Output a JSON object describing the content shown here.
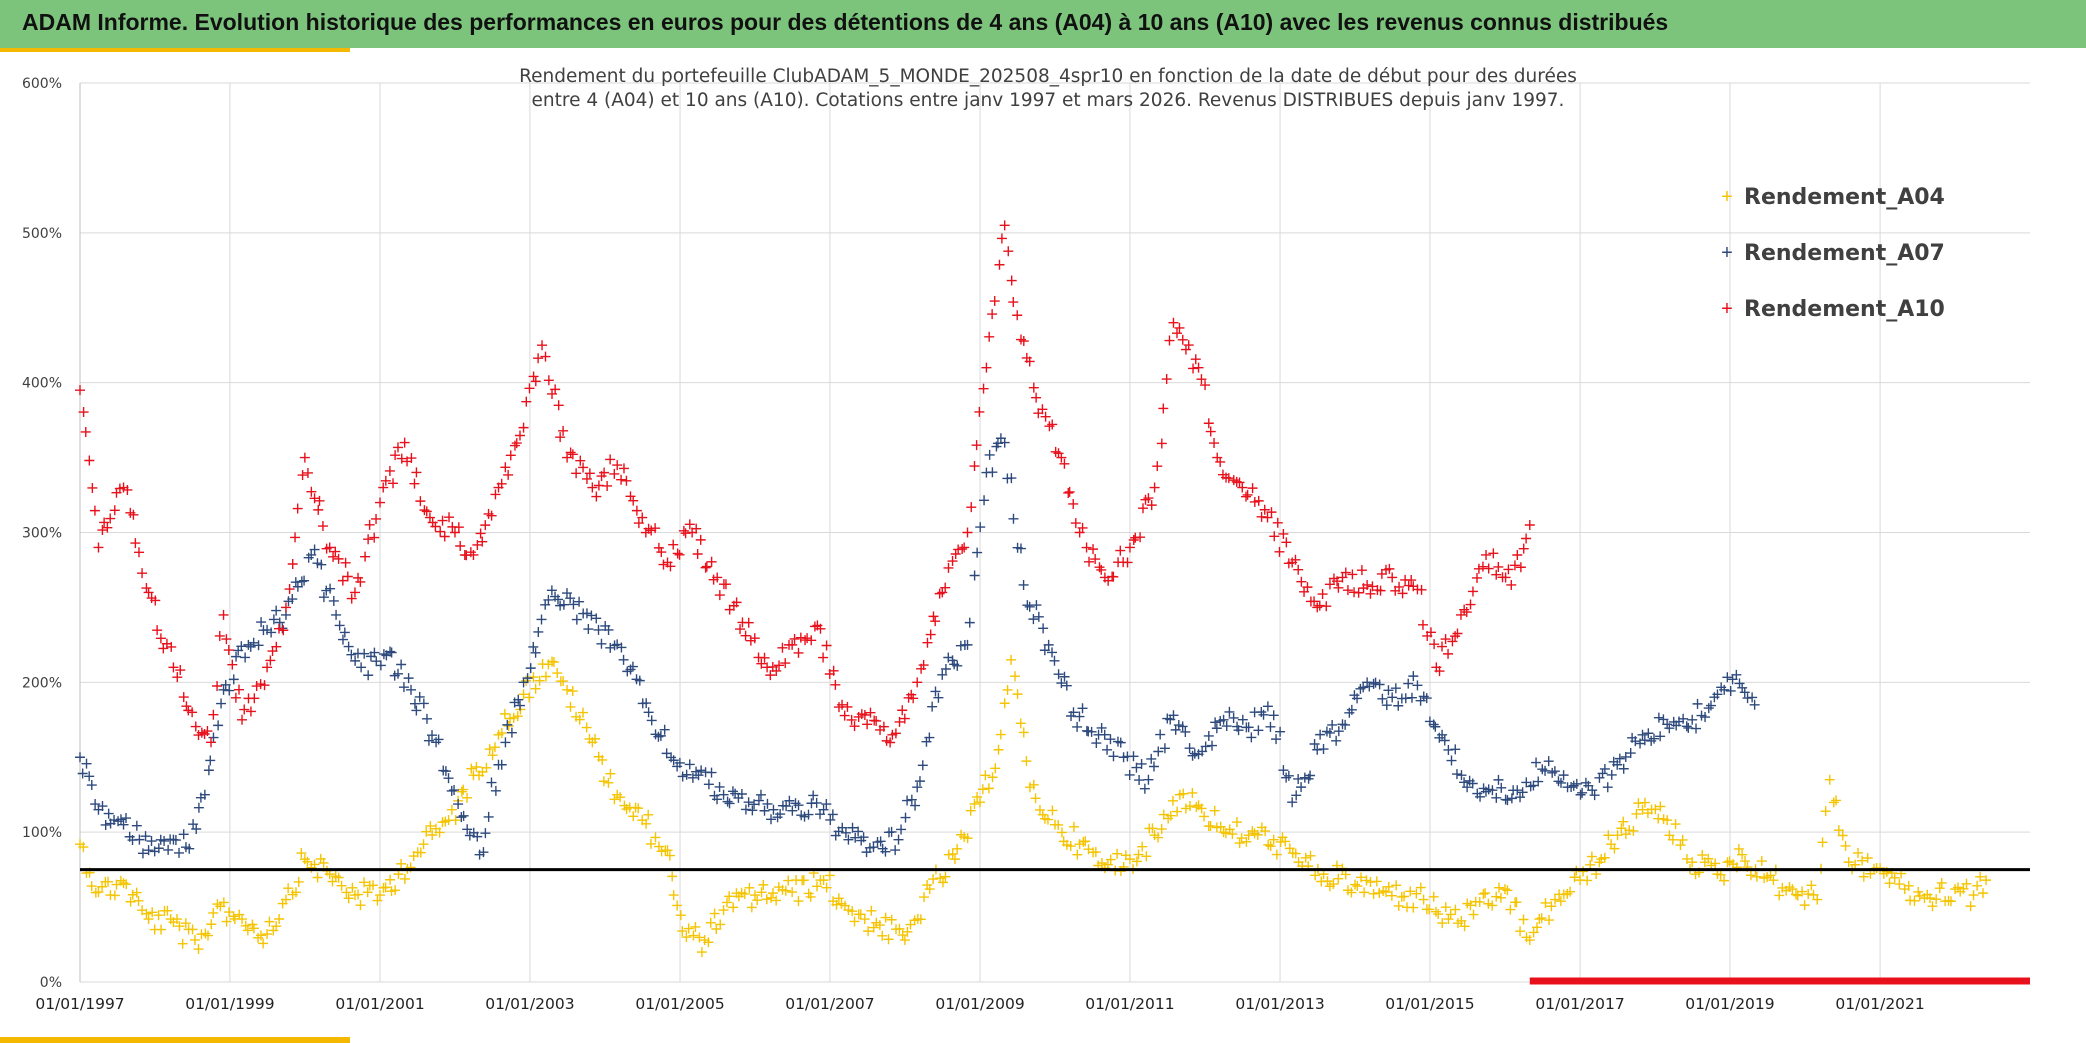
{
  "header": {
    "title": "ADAM Informe. Evolution historique des performances en euros pour des détentions de 4 ans (A04) à 10 ans (A10) avec les revenus connus distribués"
  },
  "colors": {
    "banner": "#7cc47c",
    "accent": "#f5b800",
    "series_A04": "#f5c400",
    "series_A07": "#2e4a7d",
    "series_A10": "#e8111b",
    "reference_line": "#000000",
    "grid": "#d9d9d9"
  },
  "chart_data": {
    "type": "scatter",
    "marker": "plus",
    "subtitle": [
      "Rendement du portefeuille ClubADAM_5_MONDE_202508_4spr10  en fonction de la date de début pour des durées",
      "entre 4 (A04) et 10 ans (A10). Cotations entre janv 1997 et mars 2026. Revenus DISTRIBUES depuis janv 1997."
    ],
    "x_axis": {
      "type": "date",
      "range": [
        "1997-01-01",
        "2023-01-01"
      ],
      "tick_labels": [
        "01/01/1997",
        "01/01/1999",
        "01/01/2001",
        "01/01/2003",
        "01/01/2005",
        "01/01/2007",
        "01/01/2009",
        "01/01/2011",
        "01/01/2013",
        "01/01/2015",
        "01/01/2017",
        "01/01/2019",
        "01/01/2021"
      ]
    },
    "y_axis": {
      "range": [
        0,
        600
      ],
      "unit": "%",
      "tick_labels": [
        "0%",
        "100%",
        "200%",
        "300%",
        "400%",
        "500%",
        "600%"
      ]
    },
    "grid": true,
    "legend_position": "top-right",
    "reference_line": {
      "y": 75
    },
    "series": [
      {
        "name": "Rendement_A04",
        "color": "#f5c400",
        "points": [
          [
            "1997-01-01",
            92
          ],
          [
            "1997-04-01",
            60
          ],
          [
            "1997-08-01",
            66
          ],
          [
            "1997-12-01",
            42
          ],
          [
            "1998-04-01",
            40
          ],
          [
            "1998-08-01",
            22
          ],
          [
            "1998-11-01",
            52
          ],
          [
            "1999-03-01",
            42
          ],
          [
            "1999-07-01",
            32
          ],
          [
            "1999-10-01",
            55
          ],
          [
            "2000-01-01",
            82
          ],
          [
            "2000-05-01",
            72
          ],
          [
            "2000-09-01",
            58
          ],
          [
            "2001-01-01",
            58
          ],
          [
            "2001-04-01",
            72
          ],
          [
            "2001-08-01",
            92
          ],
          [
            "2001-12-01",
            108
          ],
          [
            "2002-04-01",
            138
          ],
          [
            "2002-08-01",
            165
          ],
          [
            "2002-12-01",
            192
          ],
          [
            "2003-04-01",
            212
          ],
          [
            "2003-07-01",
            195
          ],
          [
            "2003-11-01",
            160
          ],
          [
            "2004-03-01",
            125
          ],
          [
            "2004-07-01",
            108
          ],
          [
            "2004-11-01",
            88
          ],
          [
            "2004-12-01",
            58
          ],
          [
            "2005-02-01",
            30
          ],
          [
            "2005-05-01",
            28
          ],
          [
            "2005-08-01",
            48
          ],
          [
            "2006-01-01",
            58
          ],
          [
            "2006-07-01",
            60
          ],
          [
            "2006-12-01",
            68
          ],
          [
            "2007-04-01",
            48
          ],
          [
            "2007-09-01",
            38
          ],
          [
            "2008-01-01",
            28
          ],
          [
            "2008-05-01",
            62
          ],
          [
            "2008-09-01",
            82
          ],
          [
            "2009-01-01",
            120
          ],
          [
            "2009-04-01",
            155
          ],
          [
            "2009-06-01",
            215
          ],
          [
            "2009-09-01",
            130
          ],
          [
            "2010-01-01",
            105
          ],
          [
            "2010-05-01",
            92
          ],
          [
            "2010-09-01",
            76
          ],
          [
            "2011-01-01",
            82
          ],
          [
            "2011-05-01",
            98
          ],
          [
            "2011-09-01",
            125
          ],
          [
            "2011-12-01",
            118
          ],
          [
            "2012-04-01",
            100
          ],
          [
            "2012-08-01",
            98
          ],
          [
            "2012-12-01",
            95
          ],
          [
            "2013-04-01",
            80
          ],
          [
            "2013-08-01",
            72
          ],
          [
            "2014-01-01",
            65
          ],
          [
            "2014-06-01",
            60
          ],
          [
            "2014-12-01",
            55
          ],
          [
            "2015-04-01",
            42
          ],
          [
            "2015-08-01",
            45
          ],
          [
            "2016-01-01",
            62
          ],
          [
            "2016-05-01",
            28
          ],
          [
            "2016-09-01",
            55
          ],
          [
            "2017-01-01",
            68
          ],
          [
            "2017-06-01",
            92
          ],
          [
            "2017-11-01",
            115
          ],
          [
            "2018-03-01",
            108
          ],
          [
            "2018-07-01",
            80
          ],
          [
            "2018-11-01",
            72
          ],
          [
            "2019-03-01",
            85
          ],
          [
            "2019-07-01",
            70
          ],
          [
            "2019-11-01",
            62
          ],
          [
            "2020-03-01",
            55
          ],
          [
            "2020-05-01",
            135
          ],
          [
            "2020-08-01",
            80
          ],
          [
            "2021-01-01",
            76
          ],
          [
            "2021-05-01",
            62
          ],
          [
            "2021-09-01",
            56
          ],
          [
            "2022-01-01",
            62
          ],
          [
            "2022-04-01",
            58
          ],
          [
            "2022-06-01",
            68
          ]
        ]
      },
      {
        "name": "Rendement_A07",
        "color": "#2e4a7d",
        "points": [
          [
            "1997-01-01",
            150
          ],
          [
            "1997-04-01",
            115
          ],
          [
            "1997-08-01",
            105
          ],
          [
            "1997-12-01",
            88
          ],
          [
            "1998-04-01",
            95
          ],
          [
            "1998-06-01",
            90
          ],
          [
            "1998-09-01",
            125
          ],
          [
            "1998-12-01",
            195
          ],
          [
            "1999-04-01",
            225
          ],
          [
            "1999-07-01",
            235
          ],
          [
            "1999-10-01",
            245
          ],
          [
            "2000-02-01",
            285
          ],
          [
            "2000-06-01",
            245
          ],
          [
            "2000-10-01",
            210
          ],
          [
            "2001-02-01",
            218
          ],
          [
            "2001-06-01",
            195
          ],
          [
            "2001-10-01",
            160
          ],
          [
            "2002-02-01",
            110
          ],
          [
            "2002-05-01",
            85
          ],
          [
            "2002-08-01",
            145
          ],
          [
            "2002-12-01",
            200
          ],
          [
            "2003-04-01",
            255
          ],
          [
            "2003-08-01",
            252
          ],
          [
            "2003-12-01",
            235
          ],
          [
            "2004-04-01",
            215
          ],
          [
            "2004-08-01",
            180
          ],
          [
            "2004-12-01",
            148
          ],
          [
            "2005-04-01",
            138
          ],
          [
            "2005-08-01",
            125
          ],
          [
            "2005-12-01",
            120
          ],
          [
            "2006-04-01",
            115
          ],
          [
            "2006-08-01",
            118
          ],
          [
            "2006-12-01",
            115
          ],
          [
            "2007-04-01",
            95
          ],
          [
            "2007-08-01",
            90
          ],
          [
            "2007-12-01",
            95
          ],
          [
            "2008-03-01",
            130
          ],
          [
            "2008-07-01",
            205
          ],
          [
            "2008-11-01",
            225
          ],
          [
            "2009-02-01",
            340
          ],
          [
            "2009-05-01",
            360
          ],
          [
            "2009-08-01",
            265
          ],
          [
            "2009-12-01",
            225
          ],
          [
            "2010-04-01",
            180
          ],
          [
            "2010-08-01",
            165
          ],
          [
            "2010-12-01",
            150
          ],
          [
            "2011-04-01",
            135
          ],
          [
            "2011-08-01",
            178
          ],
          [
            "2011-12-01",
            152
          ],
          [
            "2012-04-01",
            175
          ],
          [
            "2012-08-01",
            170
          ],
          [
            "2012-12-01",
            178
          ],
          [
            "2013-03-01",
            120
          ],
          [
            "2013-07-01",
            155
          ],
          [
            "2013-11-01",
            172
          ],
          [
            "2014-03-01",
            200
          ],
          [
            "2014-07-01",
            190
          ],
          [
            "2014-11-01",
            198
          ],
          [
            "2015-03-01",
            165
          ],
          [
            "2015-07-01",
            130
          ],
          [
            "2015-11-01",
            128
          ],
          [
            "2016-03-01",
            128
          ],
          [
            "2016-07-01",
            142
          ],
          [
            "2016-11-01",
            130
          ],
          [
            "2017-03-01",
            128
          ],
          [
            "2017-07-01",
            145
          ],
          [
            "2017-11-01",
            165
          ],
          [
            "2018-03-01",
            172
          ],
          [
            "2018-07-01",
            175
          ],
          [
            "2018-11-01",
            192
          ],
          [
            "2019-02-01",
            205
          ],
          [
            "2019-05-01",
            185
          ]
        ]
      },
      {
        "name": "Rendement_A10",
        "color": "#e8111b",
        "points": [
          [
            "1997-01-01",
            395
          ],
          [
            "1997-04-01",
            290
          ],
          [
            "1997-08-01",
            330
          ],
          [
            "1997-12-01",
            260
          ],
          [
            "1998-04-01",
            210
          ],
          [
            "1998-07-01",
            180
          ],
          [
            "1998-10-01",
            160
          ],
          [
            "1998-12-01",
            245
          ],
          [
            "1999-03-01",
            175
          ],
          [
            "1999-07-01",
            210
          ],
          [
            "1999-10-01",
            250
          ],
          [
            "2000-01-01",
            350
          ],
          [
            "2000-05-01",
            290
          ],
          [
            "2000-09-01",
            260
          ],
          [
            "2001-01-01",
            320
          ],
          [
            "2001-05-01",
            360
          ],
          [
            "2001-09-01",
            310
          ],
          [
            "2002-01-01",
            300
          ],
          [
            "2002-04-01",
            285
          ],
          [
            "2002-08-01",
            330
          ],
          [
            "2002-12-01",
            370
          ],
          [
            "2003-03-01",
            425
          ],
          [
            "2003-07-01",
            350
          ],
          [
            "2003-11-01",
            330
          ],
          [
            "2004-03-01",
            345
          ],
          [
            "2004-07-01",
            310
          ],
          [
            "2004-11-01",
            280
          ],
          [
            "2005-03-01",
            300
          ],
          [
            "2005-07-01",
            270
          ],
          [
            "2005-11-01",
            240
          ],
          [
            "2006-03-01",
            210
          ],
          [
            "2006-07-01",
            225
          ],
          [
            "2006-11-01",
            238
          ],
          [
            "2007-03-01",
            185
          ],
          [
            "2007-07-01",
            172
          ],
          [
            "2007-11-01",
            165
          ],
          [
            "2008-03-01",
            200
          ],
          [
            "2008-07-01",
            260
          ],
          [
            "2008-11-01",
            300
          ],
          [
            "2009-02-01",
            410
          ],
          [
            "2009-05-01",
            505
          ],
          [
            "2009-07-01",
            445
          ],
          [
            "2009-10-01",
            390
          ],
          [
            "2010-02-01",
            350
          ],
          [
            "2010-05-01",
            300
          ],
          [
            "2010-09-01",
            270
          ],
          [
            "2011-01-01",
            290
          ],
          [
            "2011-05-01",
            330
          ],
          [
            "2011-08-01",
            440
          ],
          [
            "2011-12-01",
            410
          ],
          [
            "2012-03-01",
            350
          ],
          [
            "2012-07-01",
            330
          ],
          [
            "2012-11-01",
            310
          ],
          [
            "2013-03-01",
            280
          ],
          [
            "2013-07-01",
            250
          ],
          [
            "2013-11-01",
            270
          ],
          [
            "2014-03-01",
            265
          ],
          [
            "2014-07-01",
            270
          ],
          [
            "2014-11-01",
            262
          ],
          [
            "2015-02-01",
            210
          ],
          [
            "2015-06-01",
            245
          ],
          [
            "2015-10-01",
            285
          ],
          [
            "2016-02-01",
            265
          ],
          [
            "2016-05-01",
            305
          ]
        ]
      }
    ],
    "baseline_band": {
      "from": "2016-05-01",
      "to": "2023-01-01",
      "y": 0,
      "color": "#e8111b"
    }
  }
}
